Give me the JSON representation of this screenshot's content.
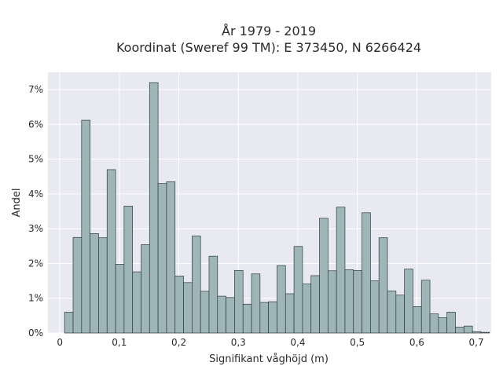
{
  "chart_data": {
    "type": "bar",
    "title_line1": "År 1979 - 2019",
    "title_line2": "Koordinat (Sweref 99 TM): E 373450, N 6266424",
    "xlabel": "Signifikant våghöjd (m)",
    "ylabel": "Andel",
    "xlim": [
      -0.02,
      0.725
    ],
    "ylim": [
      0,
      7.5
    ],
    "bin_width": 0.01428,
    "bin_start": 0.008,
    "xticks": [
      {
        "value": 0,
        "label": "0"
      },
      {
        "value": 0.1,
        "label": "0,1"
      },
      {
        "value": 0.2,
        "label": "0,2"
      },
      {
        "value": 0.3,
        "label": "0,3"
      },
      {
        "value": 0.4,
        "label": "0,4"
      },
      {
        "value": 0.5,
        "label": "0,5"
      },
      {
        "value": 0.6,
        "label": "0,6"
      },
      {
        "value": 0.7,
        "label": "0,7"
      }
    ],
    "yticks": [
      {
        "value": 0,
        "label": "0%"
      },
      {
        "value": 1,
        "label": "1%"
      },
      {
        "value": 2,
        "label": "2%"
      },
      {
        "value": 3,
        "label": "3%"
      },
      {
        "value": 4,
        "label": "4%"
      },
      {
        "value": 5,
        "label": "5%"
      },
      {
        "value": 6,
        "label": "6%"
      },
      {
        "value": 7,
        "label": "7%"
      }
    ],
    "values": [
      0.6,
      2.75,
      6.12,
      2.86,
      2.74,
      4.7,
      1.98,
      3.65,
      1.76,
      2.54,
      7.2,
      4.3,
      4.35,
      1.64,
      1.45,
      2.79,
      1.2,
      2.21,
      1.06,
      1.02,
      1.8,
      0.83,
      1.7,
      0.88,
      0.9,
      1.94,
      1.13,
      2.49,
      1.41,
      1.65,
      3.3,
      1.79,
      3.62,
      1.82,
      1.8,
      3.46,
      1.5,
      2.74,
      1.21,
      1.09,
      1.84,
      0.76,
      1.52,
      0.55,
      0.44,
      0.6,
      0.17,
      0.2,
      0.04,
      0.02
    ],
    "grid": true,
    "colors": {
      "bar_fill": "#9fb6b8",
      "bar_edge": "#2f3b3b",
      "plot_bg": "#e9e9f1",
      "grid": "#ffffff"
    }
  }
}
